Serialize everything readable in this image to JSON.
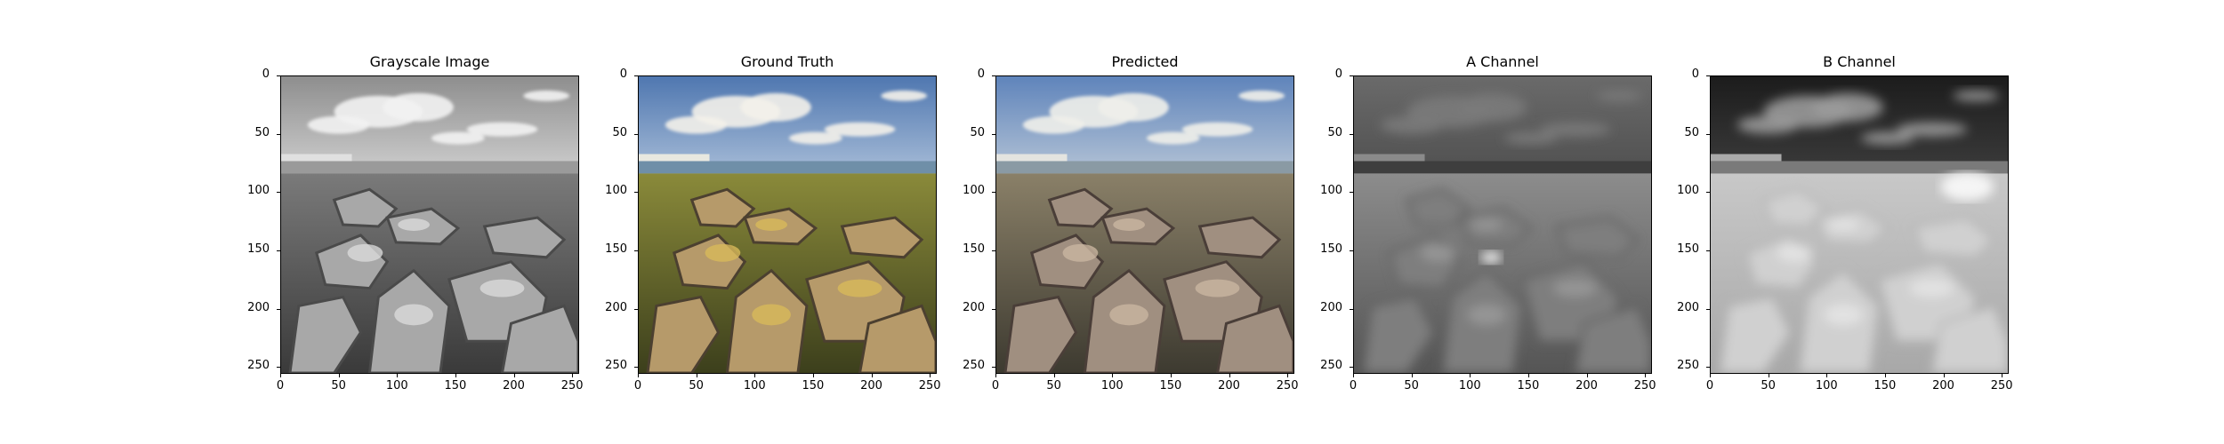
{
  "panels": [
    {
      "title": "Grayscale Image",
      "mode": "gray"
    },
    {
      "title": "Ground Truth",
      "mode": "color"
    },
    {
      "title": "Predicted",
      "mode": "muted"
    },
    {
      "title": "A Channel",
      "mode": "achannel"
    },
    {
      "title": "B Channel",
      "mode": "bchannel"
    }
  ],
  "axes": {
    "range": [
      0,
      256
    ],
    "xticks": [
      "0",
      "50",
      "100",
      "150",
      "200",
      "250"
    ],
    "yticks": [
      "0",
      "50",
      "100",
      "150",
      "200",
      "250"
    ]
  },
  "colors": {
    "sky_top": "#4f77b0",
    "sky_bottom": "#a8bdd8",
    "sea": "#6f8fa8",
    "grass": "#8a8a3a",
    "rock": "#b69a6a",
    "rock_highlight": "#d8b95a"
  }
}
